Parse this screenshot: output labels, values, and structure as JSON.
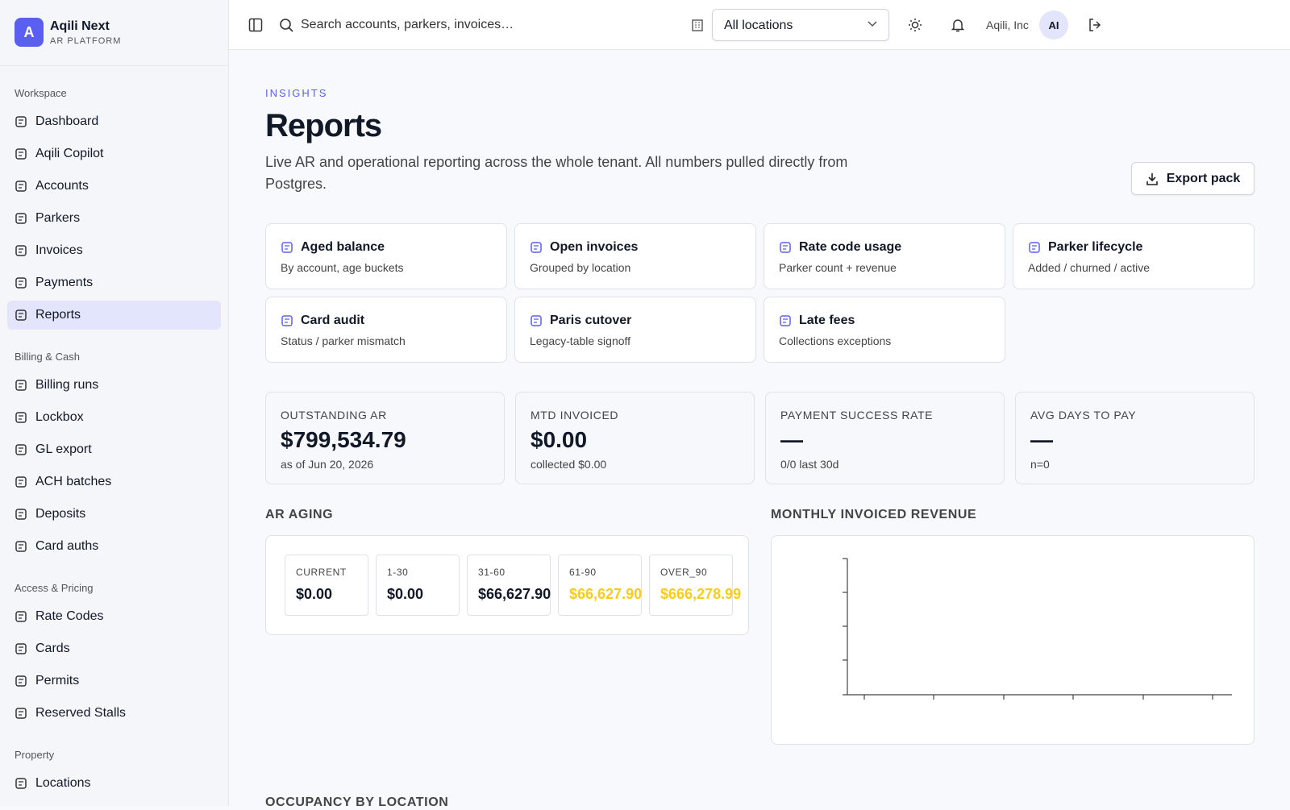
{
  "brand": {
    "initial": "A",
    "name": "Aqili Next",
    "subtitle": "AR PLATFORM"
  },
  "nav": [
    {
      "heading": "Workspace",
      "items": [
        "Dashboard",
        "Aqili Copilot",
        "Accounts",
        "Parkers",
        "Invoices",
        "Payments",
        "Reports"
      ]
    },
    {
      "heading": "Billing & Cash",
      "items": [
        "Billing runs",
        "Lockbox",
        "GL export",
        "ACH batches",
        "Deposits",
        "Card auths"
      ]
    },
    {
      "heading": "Access & Pricing",
      "items": [
        "Rate Codes",
        "Cards",
        "Permits",
        "Reserved Stalls"
      ]
    },
    {
      "heading": "Property",
      "items": [
        "Locations"
      ]
    }
  ],
  "active_nav": "Reports",
  "topbar": {
    "search": "Search accounts, parkers, invoices…",
    "location": "All locations",
    "org": "Aqili, Inc",
    "avatar": "AI"
  },
  "page": {
    "eyebrow": "INSIGHTS",
    "title": "Reports",
    "description": "Live AR and operational reporting across the whole tenant. All numbers pulled directly from Postgres.",
    "export": "Export pack"
  },
  "reports": [
    {
      "title": "Aged balance",
      "subtitle": "By account, age buckets"
    },
    {
      "title": "Open invoices",
      "subtitle": "Grouped by location"
    },
    {
      "title": "Rate code usage",
      "subtitle": "Parker count + revenue"
    },
    {
      "title": "Parker lifecycle",
      "subtitle": "Added / churned / active"
    },
    {
      "title": "Card audit",
      "subtitle": "Status / parker mismatch"
    },
    {
      "title": "Paris cutover",
      "subtitle": "Legacy-table signoff"
    },
    {
      "title": "Late fees",
      "subtitle": "Collections exceptions"
    }
  ],
  "kpis": [
    {
      "label": "OUTSTANDING AR",
      "value": "$799,534.79",
      "note": "as of Jun 20, 2026"
    },
    {
      "label": "MTD INVOICED",
      "value": "$0.00",
      "note": "collected $0.00"
    },
    {
      "label": "PAYMENT SUCCESS RATE",
      "value": "—",
      "note": "0/0 last 30d"
    },
    {
      "label": "AVG DAYS TO PAY",
      "value": "—",
      "note": "n=0"
    }
  ],
  "aging": {
    "title": "AR AGING",
    "buckets": [
      {
        "label": "CURRENT",
        "value": "$0.00"
      },
      {
        "label": "1-30",
        "value": "$0.00"
      },
      {
        "label": "31-60",
        "value": "$66,627.90"
      },
      {
        "label": "61-90",
        "value": "$66,627.90"
      },
      {
        "label": "OVER_90",
        "value": "$666,278.99"
      }
    ]
  },
  "revenue": {
    "title": "MONTHLY INVOICED REVENUE"
  },
  "occupancy": {
    "title": "OCCUPANCY BY LOCATION"
  }
}
